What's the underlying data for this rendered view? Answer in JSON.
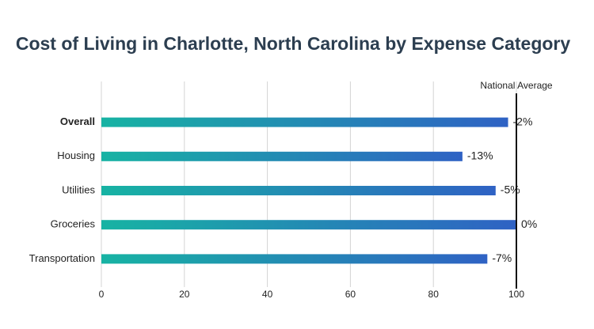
{
  "chart_data": {
    "type": "hbar",
    "title": "Cost of Living in Charlotte, North Carolina by Expense Category",
    "categories": [
      "Overall",
      "Housing",
      "Utilities",
      "Groceries",
      "Transportation"
    ],
    "bold_categories": [
      "Overall"
    ],
    "values": [
      98,
      87,
      95,
      100,
      93
    ],
    "value_labels": [
      "-2%",
      "-13%",
      "-5%",
      "0%",
      "-7%"
    ],
    "gradient": [
      "#17b3a3",
      "#2f62c4"
    ],
    "xlim": [
      0,
      100
    ],
    "xticks": [
      0,
      20,
      40,
      60,
      80,
      100
    ],
    "grid": true,
    "reference_line": {
      "value": 100,
      "label": "National Average"
    }
  }
}
